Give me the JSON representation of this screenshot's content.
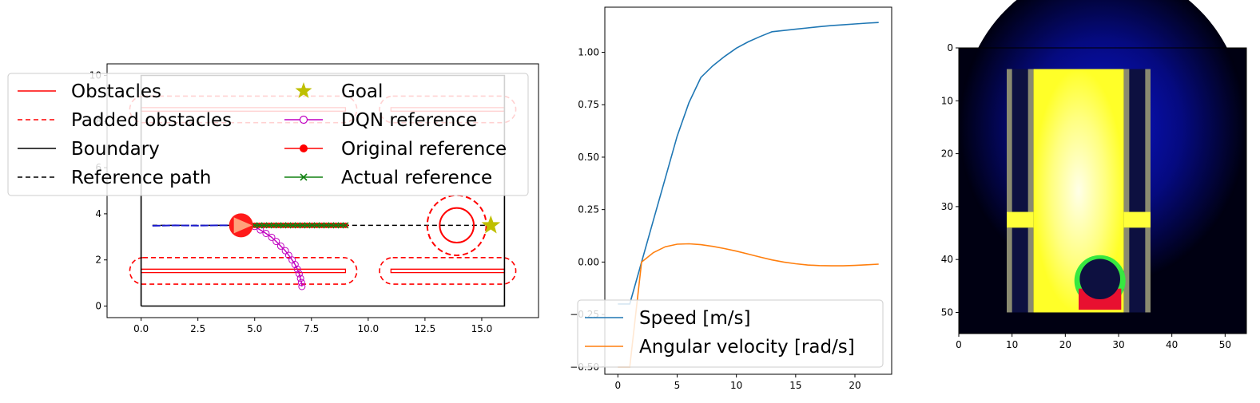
{
  "chart_data": [
    {
      "type": "scatter",
      "panel": "map",
      "xlim": [
        -1.5,
        17.5
      ],
      "ylim": [
        -0.5,
        10.5
      ],
      "xticks": [
        "0.0",
        "2.5",
        "5.0",
        "7.5",
        "10.0",
        "12.5",
        "15.0"
      ],
      "yticks": [
        "0",
        "2",
        "4",
        "6",
        "8",
        "10"
      ],
      "boundary": [
        [
          0,
          0
        ],
        [
          16,
          0
        ],
        [
          16,
          10
        ],
        [
          0,
          10
        ],
        [
          0,
          0
        ]
      ],
      "static_obstacles": [
        [
          [
            0,
            1.45
          ],
          [
            9,
            1.45
          ],
          [
            9,
            1.6
          ],
          [
            0,
            1.6
          ]
        ],
        [
          [
            11,
            1.45
          ],
          [
            16,
            1.45
          ],
          [
            16,
            1.6
          ],
          [
            11,
            1.6
          ]
        ],
        [
          [
            0,
            8.45
          ],
          [
            9,
            8.45
          ],
          [
            9,
            8.6
          ],
          [
            0,
            8.6
          ]
        ],
        [
          [
            11,
            8.45
          ],
          [
            16,
            8.45
          ],
          [
            16,
            8.6
          ],
          [
            11,
            8.6
          ]
        ]
      ],
      "padded_obstacles": [
        {
          "x0": -0.5,
          "x1": 9.5,
          "y0": 0.95,
          "y1": 2.1
        },
        {
          "x0": 10.5,
          "x1": 16.5,
          "y0": 0.95,
          "y1": 2.1
        },
        {
          "x0": -0.5,
          "x1": 9.5,
          "y0": 7.95,
          "y1": 9.1
        },
        {
          "x0": 10.5,
          "x1": 16.5,
          "y0": 7.95,
          "y1": 9.1
        }
      ],
      "dynamic_obstacle": {
        "cx": 13.9,
        "cy": 3.5,
        "r": 0.75,
        "padded_r": 1.3
      },
      "goal": [
        15.4,
        3.5
      ],
      "reference_path": {
        "x": [
          0.5,
          15.4
        ],
        "y": [
          3.5,
          3.5
        ]
      },
      "traveled_path": {
        "x": [
          0.5,
          1.5,
          2.5,
          3.5,
          4.4
        ],
        "y": [
          3.48,
          3.5,
          3.49,
          3.5,
          3.5
        ]
      },
      "robot": {
        "x": 4.4,
        "y": 3.5,
        "heading_deg": 0
      },
      "original_reference": {
        "x0": 5.0,
        "x1": 9.0,
        "y": 3.5,
        "n": 20
      },
      "actual_reference": {
        "x0": 5.0,
        "x1": 9.0,
        "y": 3.5,
        "n": 20
      },
      "dqn_reference": {
        "x": [
          5.0,
          5.25,
          5.5,
          5.75,
          5.95,
          6.15,
          6.35,
          6.5,
          6.65,
          6.78,
          6.88,
          6.96,
          7.02,
          7.06,
          7.08
        ],
        "y": [
          3.45,
          3.3,
          3.15,
          2.98,
          2.8,
          2.6,
          2.4,
          2.2,
          2.0,
          1.8,
          1.6,
          1.4,
          1.2,
          1.02,
          0.85
        ]
      },
      "legend": {
        "placement": "upper-left",
        "entries": [
          {
            "label": "Obstacles",
            "style": "red-solid"
          },
          {
            "label": "Padded obstacles",
            "style": "red-dashed"
          },
          {
            "label": "Boundary",
            "style": "black-solid"
          },
          {
            "label": "Reference path",
            "style": "black-dashed"
          },
          {
            "label": "Goal",
            "style": "gold-star"
          },
          {
            "label": "DQN reference",
            "style": "magenta-circle"
          },
          {
            "label": "Original reference",
            "style": "red-dot"
          },
          {
            "label": "Actual reference",
            "style": "green-x"
          }
        ]
      }
    },
    {
      "type": "line",
      "panel": "velocities",
      "xlim": [
        -1.1,
        23.1
      ],
      "ylim": [
        -0.535,
        1.215
      ],
      "xticks": [
        "0",
        "5",
        "10",
        "15",
        "20"
      ],
      "yticks": [
        "−0.50",
        "−0.25",
        "0.00",
        "0.25",
        "0.50",
        "0.75",
        "1.00"
      ],
      "series": [
        {
          "name": "Speed [m/s]",
          "color": "#1f77b4",
          "x": [
            0,
            1,
            2,
            3,
            4,
            5,
            6,
            7,
            8,
            9,
            10,
            11,
            12,
            13,
            14,
            15,
            16,
            17,
            18,
            19,
            20,
            21,
            22
          ],
          "y": [
            -0.2,
            -0.2,
            0.0,
            0.2,
            0.4,
            0.6,
            0.76,
            0.88,
            0.935,
            0.98,
            1.02,
            1.05,
            1.075,
            1.098,
            1.104,
            1.11,
            1.116,
            1.122,
            1.127,
            1.131,
            1.135,
            1.139,
            1.142
          ]
        },
        {
          "name": "Angular velocity [rad/s]",
          "color": "#ff7f0e",
          "x": [
            0,
            1,
            2,
            3,
            4,
            5,
            6,
            7,
            8,
            9,
            10,
            11,
            12,
            13,
            14,
            15,
            16,
            17,
            18,
            19,
            20,
            21,
            22
          ],
          "y": [
            -0.5,
            -0.5,
            0.0,
            0.045,
            0.073,
            0.085,
            0.087,
            0.083,
            0.075,
            0.064,
            0.052,
            0.038,
            0.024,
            0.01,
            0.0,
            -0.008,
            -0.014,
            -0.017,
            -0.018,
            -0.018,
            -0.016,
            -0.013,
            -0.01
          ]
        }
      ],
      "legend": {
        "placement": "lower-left"
      }
    },
    {
      "type": "heatmap",
      "panel": "observation",
      "xlim": [
        0,
        54
      ],
      "ylim": [
        54,
        0
      ],
      "xticks": [
        "0",
        "10",
        "20",
        "30",
        "40",
        "50"
      ],
      "yticks": [
        "0",
        "10",
        "20",
        "30",
        "40",
        "50"
      ],
      "colors": {
        "background": "#000012",
        "glow": "#0a14c8",
        "free_space": "#ffff3a",
        "walls": "#0d1040",
        "wall_edge": "#8a8a70",
        "obstacle_ring_green": "#37e840",
        "obstacle_ring_red": "#e81030"
      },
      "walls": [
        {
          "c0": 9,
          "c1": 14,
          "r0": 4,
          "r1": 31
        },
        {
          "c0": 9,
          "c1": 14,
          "r0": 34,
          "r1": 50
        },
        {
          "c0": 31,
          "c1": 36,
          "r0": 4,
          "r1": 31
        },
        {
          "c0": 31,
          "c1": 36,
          "r0": 34,
          "r1": 50
        }
      ],
      "corridor": {
        "c0": 14,
        "c1": 31,
        "r0": 4,
        "r1": 50
      },
      "light_source": {
        "col": 27,
        "row": 15
      },
      "dynamic_obstacle": {
        "col": 26.5,
        "row": 44,
        "r": 3.8
      }
    }
  ]
}
